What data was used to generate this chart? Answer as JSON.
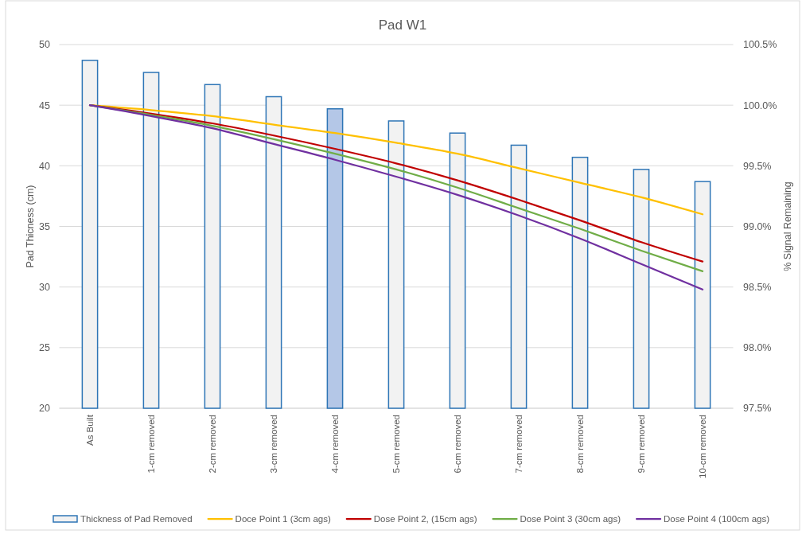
{
  "chart_data": {
    "type": "bar",
    "title": "Pad W1",
    "ylabel": "Pad Thicness (cm)",
    "y2label": "% Signal Remaining",
    "categories": [
      "As Built",
      "1-cm removed",
      "2-cm removed",
      "3-cm removed",
      "4-cm removed",
      "5-cm removed",
      "6-cm removed",
      "7-cm removed",
      "8-cm removed",
      "9-cm removed",
      "10-cm removed"
    ],
    "series": [
      {
        "name": "Thickness of Pad Removed",
        "color": "#f2f2f2",
        "colors": [
          "#f2f2f2",
          "#f2f2f2",
          "#f2f2f2",
          "#f2f2f2",
          "#b4c7e7",
          "#f2f2f2",
          "#f2f2f2",
          "#f2f2f2",
          "#f2f2f2",
          "#f2f2f2",
          "#f2f2f2"
        ],
        "values": [
          48.7,
          47.7,
          46.7,
          45.7,
          44.7,
          43.7,
          42.7,
          41.7,
          40.7,
          39.7,
          38.7
        ]
      },
      {
        "name": "Doce Point 1 (3cm ags)",
        "type": "line",
        "axis": "y2",
        "color": "#ffc000",
        "values": [
          100,
          99.96,
          99.91,
          99.84,
          99.77,
          99.69,
          99.6,
          99.48,
          99.36,
          99.24,
          99.1
        ]
      },
      {
        "name": "Dose Point 2, (15cm ags)",
        "type": "line",
        "axis": "y2",
        "color": "#c00000",
        "values": [
          100,
          99.93,
          99.85,
          99.75,
          99.64,
          99.52,
          99.38,
          99.22,
          99.05,
          98.87,
          98.71
        ]
      },
      {
        "name": "Dose Point 3 (30cm ags)",
        "type": "line",
        "axis": "y2",
        "color": "#70ad47",
        "values": [
          100,
          99.92,
          99.83,
          99.72,
          99.6,
          99.47,
          99.32,
          99.15,
          98.98,
          98.8,
          98.63
        ]
      },
      {
        "name": "Dose Point 4 (100cm ags)",
        "type": "line",
        "axis": "y2",
        "color": "#7030a0",
        "values": [
          100,
          99.91,
          99.81,
          99.68,
          99.55,
          99.41,
          99.26,
          99.09,
          98.9,
          98.69,
          98.48
        ]
      }
    ],
    "ylim": [
      20,
      50
    ],
    "yticks": [
      20,
      25,
      30,
      35,
      40,
      45,
      50
    ],
    "y2lim": [
      97.5,
      100.5
    ],
    "y2ticks": [
      {
        "value": 97.5,
        "label": "97.5%"
      },
      {
        "value": 98,
        "label": "98.0%"
      },
      {
        "value": 98.5,
        "label": "98.5%"
      },
      {
        "value": 99,
        "label": "99.0%"
      },
      {
        "value": 99.5,
        "label": "99.5%"
      },
      {
        "value": 100,
        "label": "100.0%"
      },
      {
        "value": 100.5,
        "label": "100.5%"
      }
    ],
    "grid": "y",
    "legend": "bottom"
  }
}
